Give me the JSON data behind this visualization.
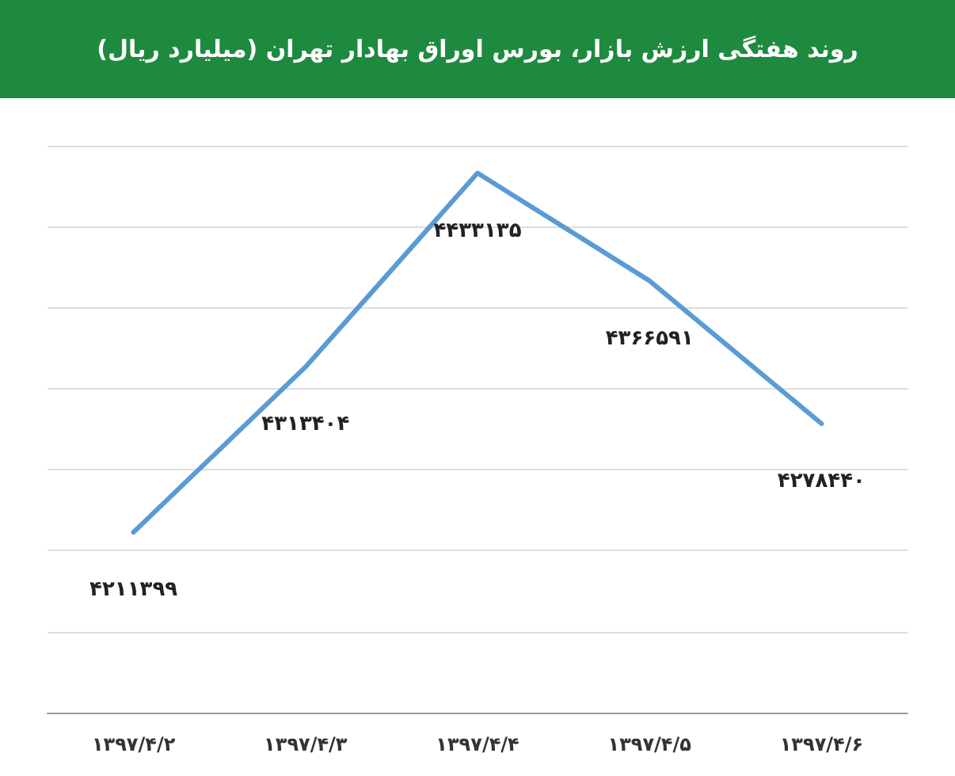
{
  "chart_data": {
    "type": "line",
    "title": "روند هفتگی ارزش بازار، بورس اوراق بهادار تهران (میلیارد ریال)",
    "categories": [
      "۱۳۹۷/۴/۲",
      "۱۳۹۷/۴/۳",
      "۱۳۹۷/۴/۴",
      "۱۳۹۷/۴/۵",
      "۱۳۹۷/۴/۶"
    ],
    "series": [
      {
        "color": "#5b9bd5",
        "values": [
          4211399,
          4313404,
          4433135,
          4366591,
          4278440
        ],
        "value_labels": [
          "۴۲۱۱۳۹۹",
          "۴۳۱۳۴۰۴",
          "۴۴۳۳۱۳۵",
          "۴۳۶۶۵۹۱",
          "۴۲۷۸۴۴۰"
        ]
      }
    ],
    "ylim": [
      4100000,
      4450000
    ],
    "yticks": [
      {
        "value": 4100000,
        "label": null
      },
      {
        "value": 4150000,
        "label": null
      },
      {
        "value": 4200000,
        "label": null
      },
      {
        "value": 4250000,
        "label": null
      },
      {
        "value": 4300000,
        "label": null
      },
      {
        "value": 4350000,
        "label": null
      },
      {
        "value": 4400000,
        "label": null
      },
      {
        "value": 4450000,
        "label": null
      }
    ],
    "tick_labels": "x",
    "grid": "y",
    "marker": "none",
    "line_style": "solid"
  }
}
